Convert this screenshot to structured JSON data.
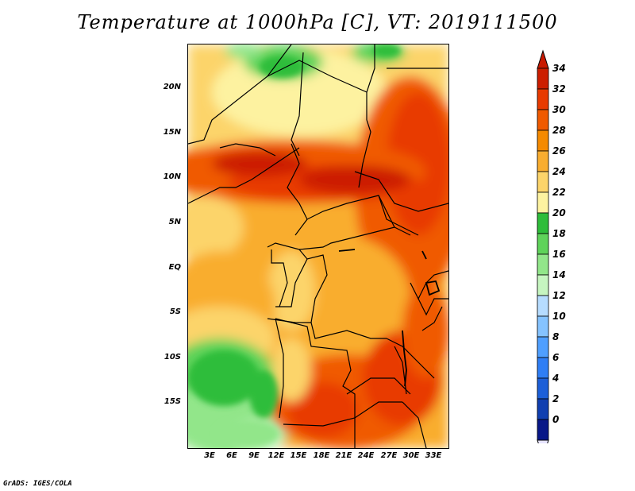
{
  "title": "Temperature at 1000hPa [C], VT: 2019111500",
  "footer": "GrADS: IGES/COLA",
  "y_axis_labels": [
    "20N",
    "15N",
    "10N",
    "5N",
    "EQ",
    "5S",
    "10S",
    "15S"
  ],
  "x_axis_labels": [
    "3E",
    "6E",
    "9E",
    "12E",
    "15E",
    "18E",
    "21E",
    "24E",
    "27E",
    "30E",
    "33E"
  ],
  "colorbar": {
    "levels": [
      "34",
      "32",
      "30",
      "28",
      "26",
      "24",
      "22",
      "20",
      "18",
      "16",
      "14",
      "12",
      "10",
      "8",
      "6",
      "4",
      "2",
      "0"
    ],
    "colors": [
      "#cc1e00",
      "#e83a00",
      "#f05a00",
      "#f58a00",
      "#f9ad2f",
      "#fcd46a",
      "#fdf2a0",
      "#2ebd3a",
      "#5fd35a",
      "#92e68a",
      "#c6f5c0",
      "#b6dcff",
      "#85c3ff",
      "#4f9fff",
      "#2f7ef5",
      "#1c5fd8",
      "#103fb0",
      "#081788"
    ],
    "top_arrow_color": "#c81900",
    "bottom_arrow_color": "#e6e4ff"
  },
  "map_extent": {
    "lon": [
      0,
      35
    ],
    "lat": [
      -20,
      25
    ]
  }
}
